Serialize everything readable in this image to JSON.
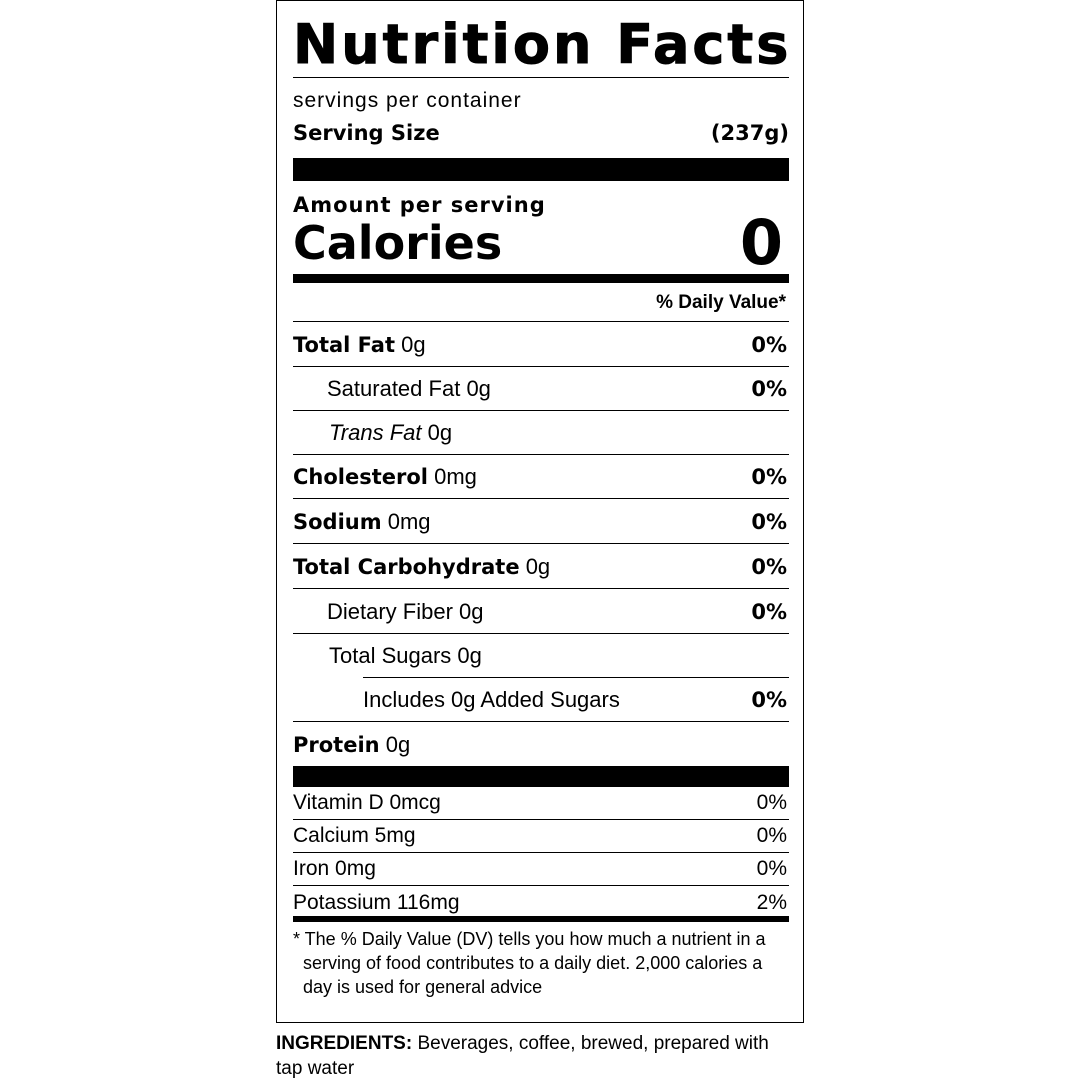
{
  "title": "Nutrition Facts",
  "servings_per_container": "servings per container",
  "serving_size": {
    "label": "Serving Size",
    "value": "(237g)"
  },
  "amount_per_serving": "Amount per serving",
  "calories": {
    "label": "Calories",
    "value": "0"
  },
  "daily_value_header": "% Daily Value*",
  "nutrients": [
    {
      "name": "Total Fat",
      "amount": "0g",
      "dv": "0%"
    },
    {
      "name": "Saturated Fat",
      "amount": "0g",
      "dv": "0%"
    },
    {
      "name": "Trans Fat",
      "amount": "0g",
      "dv": ""
    },
    {
      "name": "Cholesterol",
      "amount": "0mg",
      "dv": "0%"
    },
    {
      "name": "Sodium",
      "amount": "0mg",
      "dv": "0%"
    },
    {
      "name": "Total Carbohydrate",
      "amount": "0g",
      "dv": "0%"
    },
    {
      "name": "Dietary Fiber",
      "amount": "0g",
      "dv": "0%"
    },
    {
      "name": "Total Sugars",
      "amount": "0g",
      "dv": ""
    },
    {
      "name": "Includes 0g Added Sugars",
      "amount": "",
      "dv": "0%"
    },
    {
      "name": "Protein",
      "amount": "0g",
      "dv": ""
    }
  ],
  "vitamins": [
    {
      "label": "Vitamin D 0mcg",
      "dv": "0%"
    },
    {
      "label": "Calcium 5mg",
      "dv": "0%"
    },
    {
      "label": "Iron 0mg",
      "dv": "0%"
    },
    {
      "label": "Potassium 116mg",
      "dv": "2%"
    }
  ],
  "footnote": "* The % Daily Value (DV) tells you how much a nutrient in a serving of food contributes to a daily diet. 2,000 calories a day is used for general advice",
  "ingredients": {
    "label": "INGREDIENTS:",
    "text": " Beverages, coffee, brewed, prepared with tap water"
  }
}
